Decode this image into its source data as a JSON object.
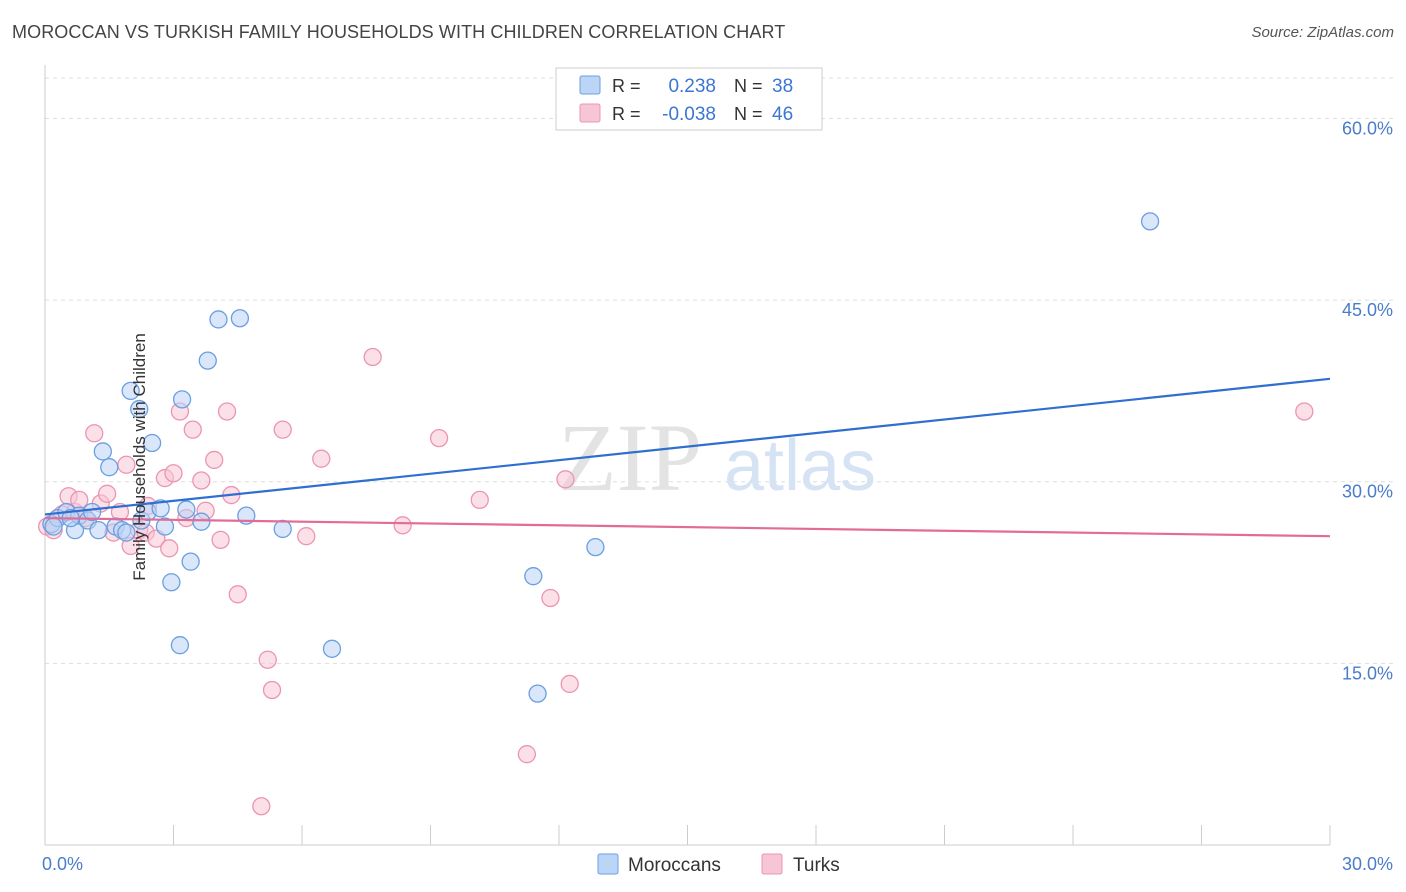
{
  "title": "MOROCCAN VS TURKISH FAMILY HOUSEHOLDS WITH CHILDREN CORRELATION CHART",
  "source": "Source: ZipAtlas.com",
  "watermark": {
    "zip": "ZIP",
    "atlas": "atlas"
  },
  "colors": {
    "blue": "#6a9fe0",
    "blue_fill": "#bcd4f6",
    "blue_line": "#2f6fcf",
    "pink": "#ec94b3",
    "pink_fill": "#f7c6d6",
    "pink_line": "#e26c97",
    "axis_text": "#4a7cc9",
    "grid": "#dddddd"
  },
  "legend": {
    "rows": [
      {
        "r_label": "R =",
        "r_value": "0.238",
        "n_label": "N =",
        "n_value": "38"
      },
      {
        "r_label": "R =",
        "r_value": "-0.038",
        "n_label": "N =",
        "n_value": "46"
      }
    ]
  },
  "chart_data": {
    "type": "scatter",
    "title": "MOROCCAN VS TURKISH FAMILY HOUSEHOLDS WITH CHILDREN CORRELATION CHART",
    "xlabel": "",
    "ylabel": "Family Households with Children",
    "xlim": [
      0,
      30
    ],
    "ylim": [
      0,
      64
    ],
    "x_tick_labels": [
      "0.0%",
      "30.0%"
    ],
    "y_ticks": [
      15,
      30,
      45,
      60
    ],
    "y_tick_labels": [
      "15.0%",
      "30.0%",
      "45.0%",
      "60.0%"
    ],
    "grid": true,
    "legend_position": "bottom-center",
    "series": [
      {
        "name": "Moroccans",
        "color": "#6a9fe0",
        "trend": {
          "x": [
            0,
            30
          ],
          "y": [
            27.3,
            38.5
          ]
        },
        "points": [
          {
            "x": 0.15,
            "y": 26.5
          },
          {
            "x": 0.3,
            "y": 27.0
          },
          {
            "x": 0.5,
            "y": 27.5
          },
          {
            "x": 0.7,
            "y": 26.0
          },
          {
            "x": 0.8,
            "y": 27.2
          },
          {
            "x": 1.0,
            "y": 26.8
          },
          {
            "x": 1.1,
            "y": 27.5
          },
          {
            "x": 1.25,
            "y": 26.0
          },
          {
            "x": 1.35,
            "y": 32.5
          },
          {
            "x": 1.5,
            "y": 31.2
          },
          {
            "x": 1.65,
            "y": 26.3
          },
          {
            "x": 1.8,
            "y": 26.0
          },
          {
            "x": 1.9,
            "y": 25.8
          },
          {
            "x": 2.0,
            "y": 37.5
          },
          {
            "x": 2.2,
            "y": 36.0
          },
          {
            "x": 2.25,
            "y": 26.8
          },
          {
            "x": 2.4,
            "y": 27.5
          },
          {
            "x": 2.5,
            "y": 33.2
          },
          {
            "x": 2.7,
            "y": 27.8
          },
          {
            "x": 2.8,
            "y": 26.3
          },
          {
            "x": 2.95,
            "y": 21.7
          },
          {
            "x": 3.15,
            "y": 16.5
          },
          {
            "x": 3.2,
            "y": 36.8
          },
          {
            "x": 3.3,
            "y": 27.7
          },
          {
            "x": 3.4,
            "y": 23.4
          },
          {
            "x": 3.65,
            "y": 26.7
          },
          {
            "x": 3.8,
            "y": 40.0
          },
          {
            "x": 4.05,
            "y": 43.4
          },
          {
            "x": 4.55,
            "y": 43.5
          },
          {
            "x": 4.7,
            "y": 27.2
          },
          {
            "x": 5.55,
            "y": 26.1
          },
          {
            "x": 6.7,
            "y": 16.2
          },
          {
            "x": 11.4,
            "y": 22.2
          },
          {
            "x": 11.5,
            "y": 12.5
          },
          {
            "x": 12.85,
            "y": 24.6
          },
          {
            "x": 25.8,
            "y": 51.5
          },
          {
            "x": 0.2,
            "y": 26.3
          },
          {
            "x": 0.6,
            "y": 27.0
          }
        ]
      },
      {
        "name": "Turks",
        "color": "#ec94b3",
        "trend": {
          "x": [
            0,
            30
          ],
          "y": [
            27.0,
            25.5
          ]
        },
        "points": [
          {
            "x": 0.05,
            "y": 26.3
          },
          {
            "x": 0.2,
            "y": 26.0
          },
          {
            "x": 0.4,
            "y": 27.3
          },
          {
            "x": 0.55,
            "y": 28.8
          },
          {
            "x": 0.7,
            "y": 27.5
          },
          {
            "x": 0.8,
            "y": 28.5
          },
          {
            "x": 0.95,
            "y": 27.0
          },
          {
            "x": 1.15,
            "y": 34.0
          },
          {
            "x": 1.3,
            "y": 28.2
          },
          {
            "x": 1.45,
            "y": 29.0
          },
          {
            "x": 1.6,
            "y": 25.8
          },
          {
            "x": 1.75,
            "y": 27.5
          },
          {
            "x": 1.9,
            "y": 31.4
          },
          {
            "x": 2.0,
            "y": 24.7
          },
          {
            "x": 2.2,
            "y": 26.0
          },
          {
            "x": 2.35,
            "y": 25.8
          },
          {
            "x": 2.4,
            "y": 28.0
          },
          {
            "x": 2.6,
            "y": 25.3
          },
          {
            "x": 2.8,
            "y": 30.3
          },
          {
            "x": 2.9,
            "y": 24.5
          },
          {
            "x": 3.0,
            "y": 30.7
          },
          {
            "x": 3.15,
            "y": 35.8
          },
          {
            "x": 3.3,
            "y": 27.0
          },
          {
            "x": 3.45,
            "y": 34.3
          },
          {
            "x": 3.65,
            "y": 30.1
          },
          {
            "x": 3.75,
            "y": 27.6
          },
          {
            "x": 3.95,
            "y": 31.8
          },
          {
            "x": 4.1,
            "y": 25.2
          },
          {
            "x": 4.25,
            "y": 35.8
          },
          {
            "x": 4.35,
            "y": 28.9
          },
          {
            "x": 4.5,
            "y": 20.7
          },
          {
            "x": 5.05,
            "y": 3.2
          },
          {
            "x": 5.2,
            "y": 15.3
          },
          {
            "x": 5.3,
            "y": 12.8
          },
          {
            "x": 5.55,
            "y": 34.3
          },
          {
            "x": 6.1,
            "y": 25.5
          },
          {
            "x": 6.45,
            "y": 31.9
          },
          {
            "x": 7.65,
            "y": 40.3
          },
          {
            "x": 8.35,
            "y": 26.4
          },
          {
            "x": 9.2,
            "y": 33.6
          },
          {
            "x": 10.15,
            "y": 28.5
          },
          {
            "x": 11.25,
            "y": 7.5
          },
          {
            "x": 11.8,
            "y": 20.4
          },
          {
            "x": 12.15,
            "y": 30.2
          },
          {
            "x": 12.25,
            "y": 13.3
          },
          {
            "x": 29.4,
            "y": 35.8
          }
        ]
      }
    ]
  }
}
